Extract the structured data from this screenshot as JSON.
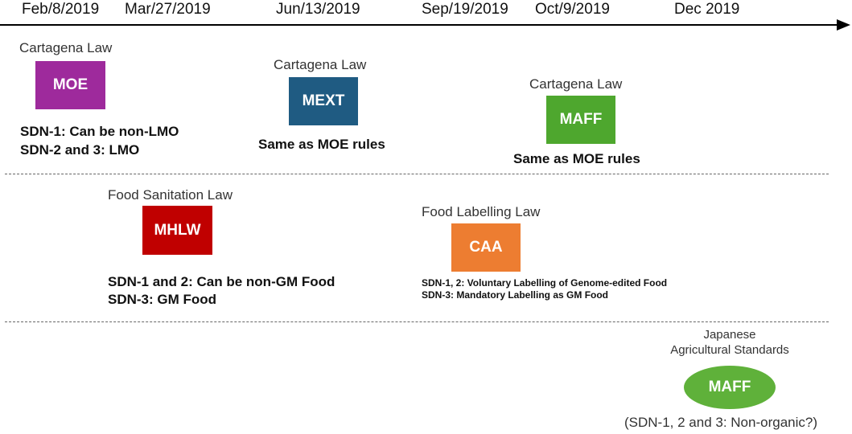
{
  "timeline": {
    "dates": [
      "Feb/8/2019",
      "Mar/27/2019",
      "Jun/13/2019",
      "Sep/19/2019",
      "Oct/9/2019",
      "Dec 2019"
    ]
  },
  "cartagena": {
    "moe": {
      "law": "Cartagena Law",
      "agency": "MOE",
      "color": "#9e2a9c",
      "rules": [
        "SDN-1: Can be non-LMO",
        "SDN-2 and 3: LMO"
      ]
    },
    "mext": {
      "law": "Cartagena Law",
      "agency": "MEXT",
      "color": "#1f5b82",
      "rules": [
        "Same as MOE rules"
      ]
    },
    "maff": {
      "law": "Cartagena Law",
      "agency": "MAFF",
      "color": "#4ea72e",
      "rules": [
        "Same as MOE rules"
      ]
    }
  },
  "food": {
    "mhlw": {
      "law": "Food Sanitation Law",
      "agency": "MHLW",
      "color": "#c00000",
      "rules": [
        "SDN-1 and 2: Can be non-GM Food",
        "SDN-3: GM Food"
      ]
    },
    "caa": {
      "law": "Food Labelling Law",
      "agency": "CAA",
      "color": "#ed7d31",
      "rules": [
        "SDN-1, 2: Voluntary Labelling of Genome-edited Food",
        "SDN-3: Mandatory Labelling as GM Food"
      ]
    }
  },
  "jas": {
    "law_line1": "Japanese",
    "law_line2": "Agricultural Standards",
    "agency": "MAFF",
    "color": "#5fb13a",
    "rule": "(SDN-1, 2 and 3: Non-organic?)"
  }
}
